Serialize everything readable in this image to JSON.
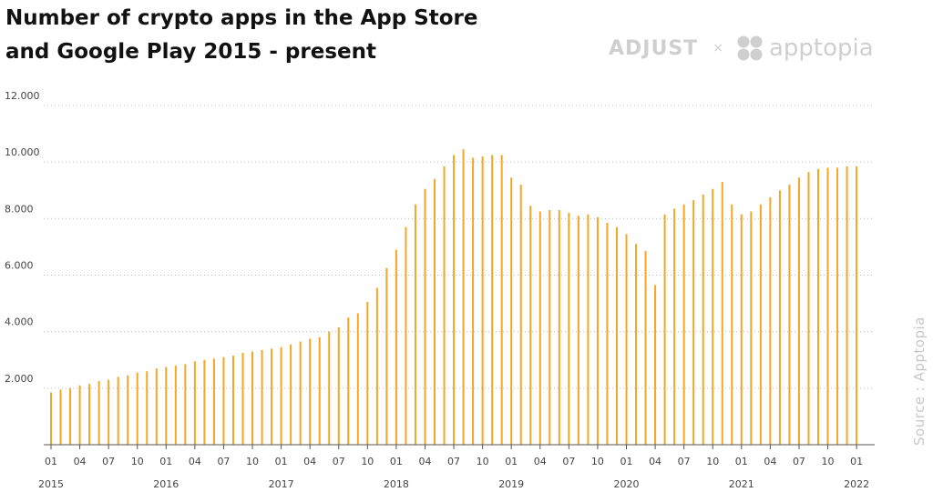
{
  "header": {
    "title_line1": "Number of crypto apps in the App Store",
    "title_line2": "and Google Play 2015 - present",
    "logo_adjust": "ADJUST",
    "logo_separator": "×",
    "logo_apptopia": "apptopia"
  },
  "source": "Source : Apptopia",
  "chart_data": {
    "type": "bar",
    "title": "Number of crypto apps in the App Store and Google Play 2015 - present",
    "xlabel": "",
    "ylabel": "",
    "ylim": [
      0,
      12000
    ],
    "yticks": [
      2000,
      4000,
      6000,
      8000,
      10000,
      12000
    ],
    "ytick_labels": [
      "2.000",
      "4.000",
      "6.000",
      "8.000",
      "10.000",
      "12.000"
    ],
    "grid": true,
    "legend": "none",
    "color": "#f5a623",
    "start": "2015-01",
    "x_tick_labels": [
      "01",
      "04",
      "07",
      "10",
      "01",
      "04",
      "07",
      "10",
      "01",
      "04",
      "07",
      "10",
      "01",
      "04",
      "07",
      "10",
      "01",
      "04",
      "07",
      "10",
      "01",
      "04",
      "07",
      "10",
      "01",
      "04",
      "07",
      "10",
      "01"
    ],
    "year_labels": [
      "2015",
      "2016",
      "2017",
      "2018",
      "2019",
      "2020",
      "2021",
      "2022"
    ],
    "values": [
      1850,
      1950,
      2000,
      2100,
      2150,
      2250,
      2300,
      2400,
      2450,
      2550,
      2600,
      2700,
      2750,
      2800,
      2850,
      2950,
      3000,
      3050,
      3100,
      3150,
      3250,
      3300,
      3350,
      3400,
      3450,
      3550,
      3650,
      3750,
      3800,
      4000,
      4150,
      4500,
      4650,
      5050,
      5550,
      6250,
      6900,
      7700,
      8500,
      9050,
      9400,
      9850,
      10250,
      10450,
      10150,
      10200,
      10250,
      10250,
      9450,
      9200,
      8450,
      8250,
      8300,
      8300,
      8200,
      8100,
      8150,
      8050,
      7850,
      7700,
      7450,
      7100,
      6850,
      5650,
      8150,
      8350,
      8500,
      8650,
      8850,
      9050,
      9300,
      8500,
      8150,
      8250,
      8500,
      8750,
      9000,
      9200,
      9450,
      9650,
      9750,
      9800,
      9800,
      9850,
      9850
    ]
  }
}
